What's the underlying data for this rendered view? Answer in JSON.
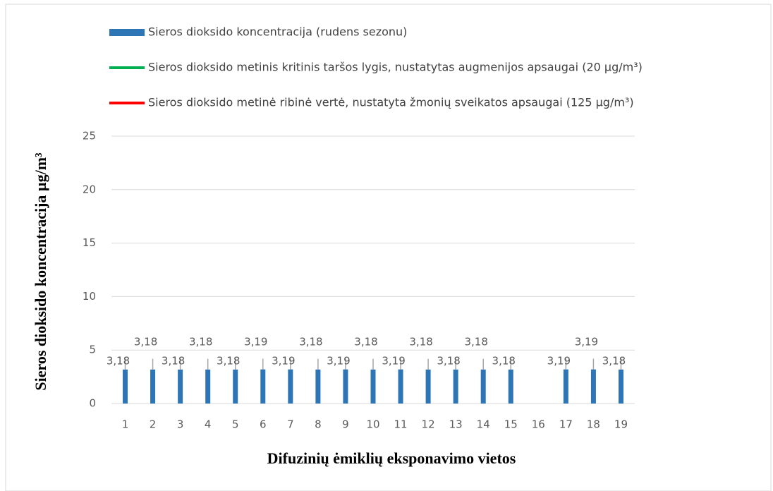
{
  "chart_data": {
    "type": "bar",
    "x_label": "Difuzinių ėmiklių eksponavimo vietos",
    "y_label": "Sieros dioksido koncentracija  µg/m³",
    "categories": [
      "1",
      "2",
      "3",
      "4",
      "5",
      "6",
      "7",
      "8",
      "9",
      "10",
      "11",
      "12",
      "13",
      "14",
      "15",
      "16",
      "17",
      "18",
      "19"
    ],
    "series": [
      {
        "name": "Sieros dioksido koncentracija (rudens sezonu)",
        "type": "bar",
        "color": "#2e75b6",
        "values": [
          3.18,
          3.18,
          3.18,
          3.18,
          3.18,
          3.19,
          3.19,
          3.18,
          3.19,
          3.18,
          3.19,
          3.18,
          3.18,
          3.18,
          3.18,
          null,
          3.19,
          3.19,
          3.18
        ],
        "value_labels": [
          "3,18",
          "3,18",
          "3,18",
          "3,18",
          "3,18",
          "3,19",
          "3,19",
          "3,18",
          "3,19",
          "3,18",
          "3,19",
          "3,18",
          "3,18",
          "3,18",
          "3,18",
          null,
          "3,19",
          "3,19",
          "3,18"
        ],
        "errors": [
          1,
          1,
          1,
          1,
          1,
          1,
          1,
          1,
          1,
          1,
          1,
          1,
          1,
          1,
          1,
          null,
          1,
          1,
          1
        ]
      },
      {
        "name": "Sieros dioksido metinis kritinis taršos lygis, nustatytas augmenijos apsaugai (20 µg/m³)",
        "type": "line",
        "color": "#00b050",
        "values": [
          20,
          20,
          20,
          20,
          20,
          20,
          20,
          20,
          20,
          20,
          20,
          20,
          20,
          20,
          20,
          20,
          20,
          20,
          20
        ]
      },
      {
        "name": "Sieros dioksido metinė ribinė vertė, nustatyta žmonių sveikatos apsaugai (125 µg/m³)",
        "type": "line",
        "color": "#ff0000",
        "values": [
          125,
          125,
          125,
          125,
          125,
          125,
          125,
          125,
          125,
          125,
          125,
          125,
          125,
          125,
          125,
          125,
          125,
          125,
          125
        ]
      }
    ],
    "ylim": [
      0,
      25
    ],
    "yticks": [
      0,
      5,
      10,
      15,
      20,
      25
    ],
    "grid": true,
    "legend": "top"
  }
}
